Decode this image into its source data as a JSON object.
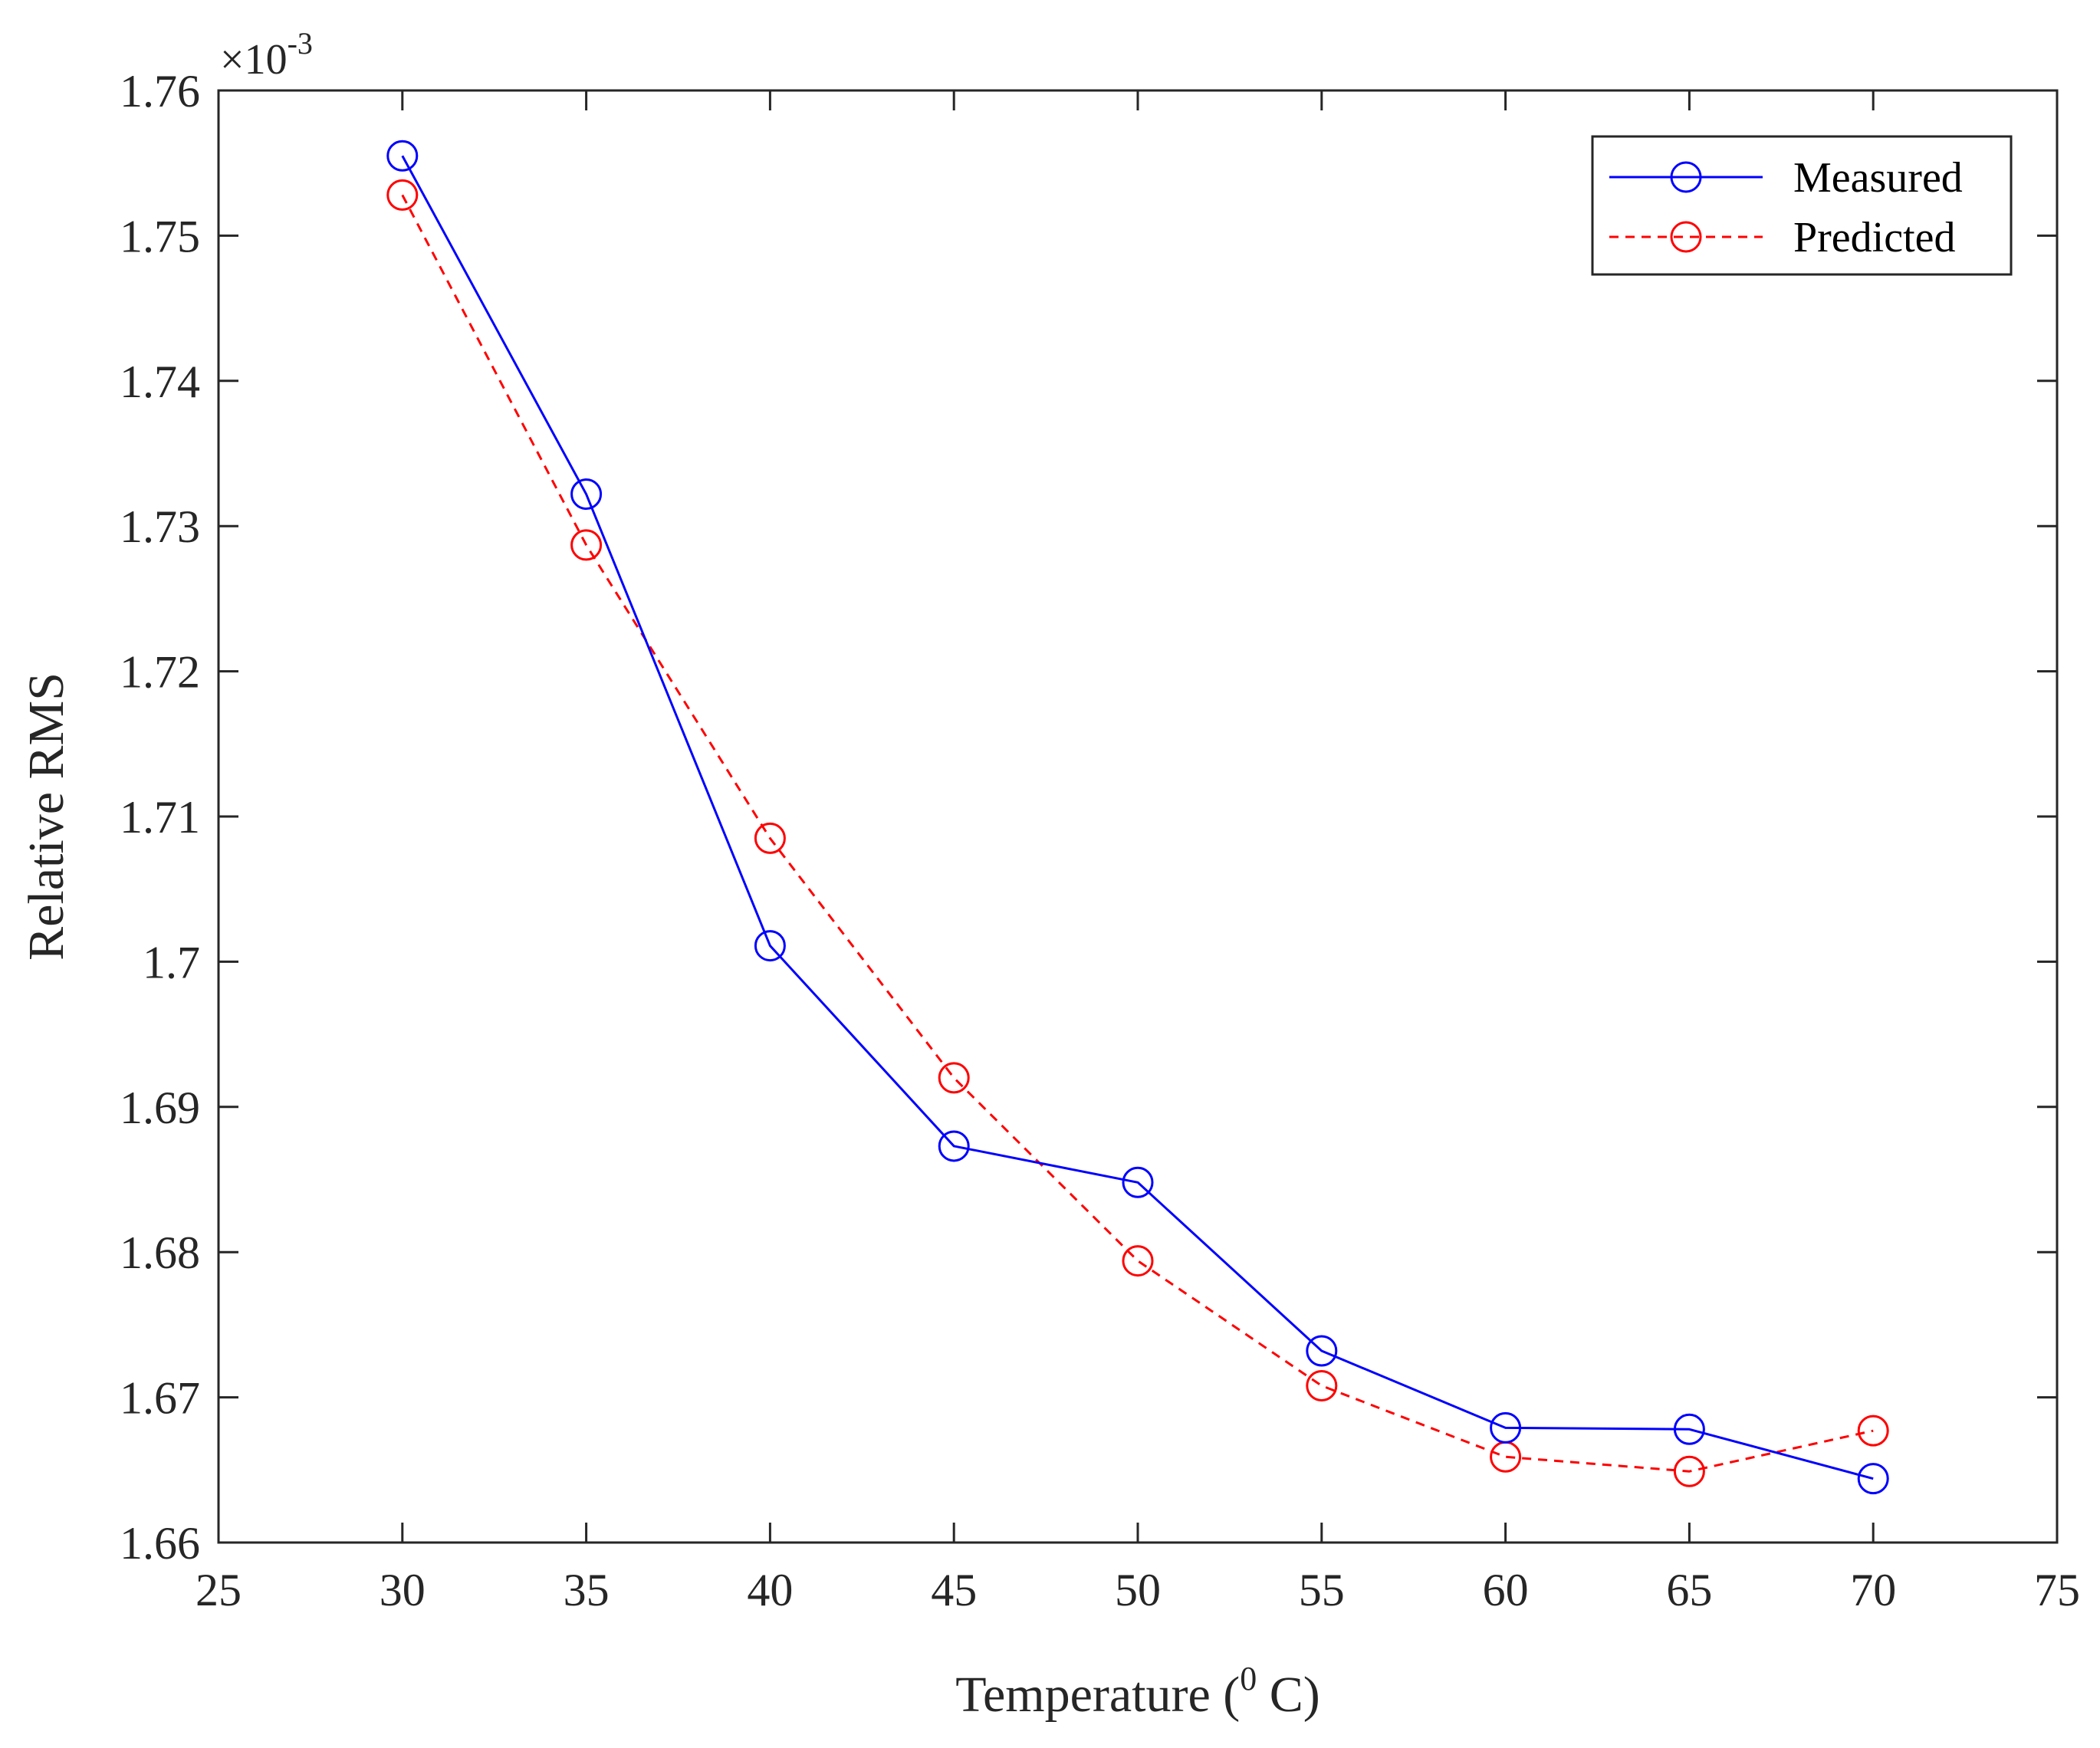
{
  "chart_data": {
    "type": "line",
    "title": "",
    "xlabel": "Temperature (",
    "xlabel_superscript": "0",
    "xlabel_suffix": " C)",
    "ylabel": "Relative RMS",
    "y_multiplier_base": "×10",
    "y_multiplier_exponent": "-3",
    "xlim": [
      25,
      75
    ],
    "ylim": [
      1.66,
      1.76
    ],
    "x_ticks": [
      25,
      30,
      35,
      40,
      45,
      50,
      55,
      60,
      65,
      70,
      75
    ],
    "x_tick_labels": [
      "25",
      "30",
      "35",
      "40",
      "45",
      "50",
      "55",
      "60",
      "65",
      "70",
      "75"
    ],
    "y_ticks": [
      1.66,
      1.67,
      1.68,
      1.69,
      1.7,
      1.71,
      1.72,
      1.73,
      1.74,
      1.75,
      1.76
    ],
    "y_tick_labels": [
      "1.66",
      "1.67",
      "1.68",
      "1.69",
      "1.7",
      "1.71",
      "1.72",
      "1.73",
      "1.74",
      "1.75",
      "1.76"
    ],
    "grid": false,
    "legend_position": "top-right",
    "x": [
      30,
      35,
      40,
      45,
      50,
      55,
      60,
      65,
      70
    ],
    "series": [
      {
        "name": "Measured",
        "color": "#0000ff",
        "line_style": "solid",
        "marker": "circle",
        "values": [
          1.7555,
          1.7322,
          1.7011,
          1.6873,
          1.6848,
          1.6732,
          1.6679,
          1.6678,
          1.6644
        ]
      },
      {
        "name": "Predicted",
        "color": "#ff0000",
        "line_style": "dashed",
        "marker": "circle",
        "values": [
          1.7528,
          1.7287,
          1.7085,
          1.692,
          1.6794,
          1.6708,
          1.6659,
          1.6649,
          1.6677
        ]
      }
    ]
  }
}
